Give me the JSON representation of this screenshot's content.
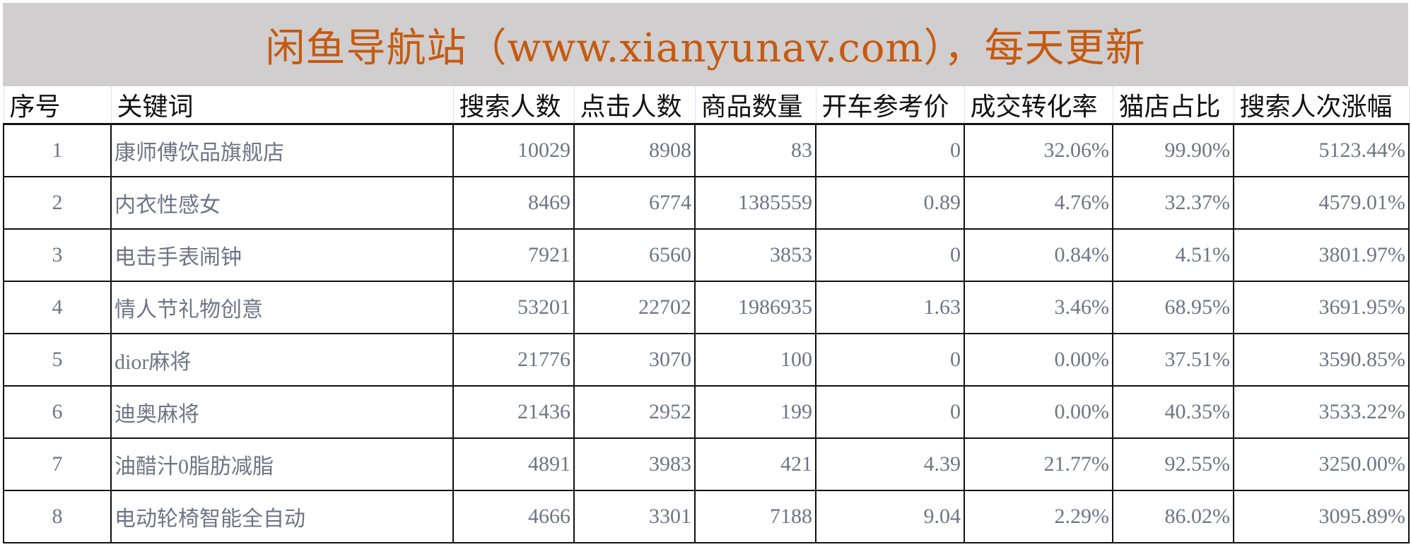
{
  "banner": {
    "title": "闲鱼导航站（www.xianyunav.com），每天更新"
  },
  "table": {
    "columns": [
      "序号",
      "关键词",
      "搜索人数",
      "点击人数",
      "商品数量",
      "开车参考价",
      "成交转化率",
      "猫店占比",
      "搜索人次涨幅"
    ],
    "rows": [
      [
        "1",
        "康师傅饮品旗舰店",
        "10029",
        "8908",
        "83",
        "0",
        "32.06%",
        "99.90%",
        "5123.44%"
      ],
      [
        "2",
        "内衣性感女",
        "8469",
        "6774",
        "1385559",
        "0.89",
        "4.76%",
        "32.37%",
        "4579.01%"
      ],
      [
        "3",
        "电击手表闹钟",
        "7921",
        "6560",
        "3853",
        "0",
        "0.84%",
        "4.51%",
        "3801.97%"
      ],
      [
        "4",
        "情人节礼物创意",
        "53201",
        "22702",
        "1986935",
        "1.63",
        "3.46%",
        "68.95%",
        "3691.95%"
      ],
      [
        "5",
        "dior麻将",
        "21776",
        "3070",
        "100",
        "0",
        "0.00%",
        "37.51%",
        "3590.85%"
      ],
      [
        "6",
        "迪奥麻将",
        "21436",
        "2952",
        "199",
        "0",
        "0.00%",
        "40.35%",
        "3533.22%"
      ],
      [
        "7",
        "油醋汁0脂肪减脂",
        "4891",
        "3983",
        "421",
        "4.39",
        "21.77%",
        "92.55%",
        "3250.00%"
      ],
      [
        "8",
        "电动轮椅智能全自动",
        "4666",
        "3301",
        "7188",
        "9.04",
        "2.29%",
        "86.02%",
        "3095.89%"
      ]
    ]
  },
  "colors": {
    "banner_bg": "#d0cece",
    "title_text": "#c55a11",
    "cell_text": "#6f7585",
    "border": "#111111"
  }
}
